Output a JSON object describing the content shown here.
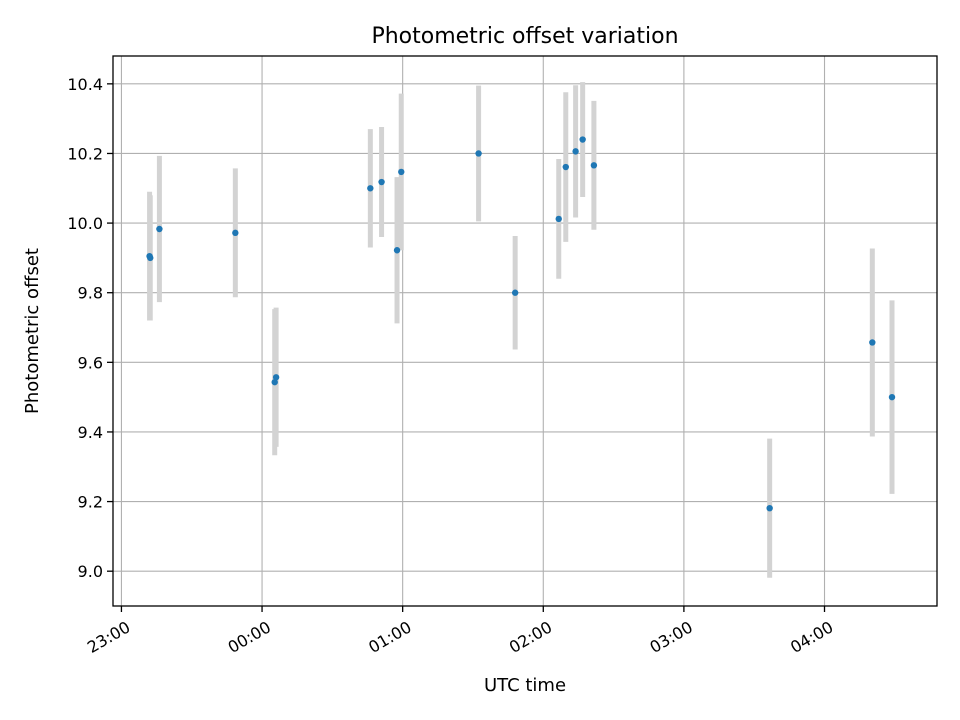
{
  "chart_data": {
    "type": "scatter",
    "title": "Photometric offset variation",
    "xlabel": "UTC time",
    "ylabel": "Photometric offset",
    "x_unit": "hours relative to 00:00 UTC",
    "xlim": [
      -1.06,
      4.8
    ],
    "ylim": [
      8.9,
      10.48
    ],
    "xticks": [
      -1,
      0,
      1,
      2,
      3,
      4
    ],
    "xtick_labels": [
      "23:00",
      "00:00",
      "01:00",
      "02:00",
      "03:00",
      "04:00"
    ],
    "yticks": [
      9.0,
      9.2,
      9.4,
      9.6,
      9.8,
      10.0,
      10.2,
      10.4
    ],
    "ytick_labels": [
      "9.0",
      "9.2",
      "9.4",
      "9.6",
      "9.8",
      "10.0",
      "10.2",
      "10.4"
    ],
    "grid": true,
    "point_color": "#1f77b4",
    "errorbar_color": "#d3d3d3",
    "points": [
      {
        "x": -0.8,
        "y": 9.905,
        "yerr": 0.185
      },
      {
        "x": -0.795,
        "y": 9.9,
        "yerr": 0.18
      },
      {
        "x": -0.73,
        "y": 9.983,
        "yerr": 0.21
      },
      {
        "x": -0.19,
        "y": 9.972,
        "yerr": 0.185
      },
      {
        "x": 0.09,
        "y": 9.543,
        "yerr": 0.21
      },
      {
        "x": 0.1,
        "y": 9.557,
        "yerr": 0.2
      },
      {
        "x": 0.77,
        "y": 10.1,
        "yerr": 0.17
      },
      {
        "x": 0.85,
        "y": 10.118,
        "yerr": 0.158
      },
      {
        "x": 0.96,
        "y": 9.922,
        "yerr": 0.21
      },
      {
        "x": 0.99,
        "y": 10.147,
        "yerr": 0.225
      },
      {
        "x": 1.54,
        "y": 10.2,
        "yerr": 0.195
      },
      {
        "x": 1.8,
        "y": 9.8,
        "yerr": 0.163
      },
      {
        "x": 2.11,
        "y": 10.012,
        "yerr": 0.172
      },
      {
        "x": 2.16,
        "y": 10.161,
        "yerr": 0.215
      },
      {
        "x": 2.23,
        "y": 10.206,
        "yerr": 0.19
      },
      {
        "x": 2.28,
        "y": 10.24,
        "yerr": 0.165
      },
      {
        "x": 2.36,
        "y": 10.166,
        "yerr": 0.185
      },
      {
        "x": 3.61,
        "y": 9.181,
        "yerr": 0.2
      },
      {
        "x": 4.34,
        "y": 9.657,
        "yerr": 0.27
      },
      {
        "x": 4.48,
        "y": 9.5,
        "yerr": 0.278
      }
    ]
  }
}
